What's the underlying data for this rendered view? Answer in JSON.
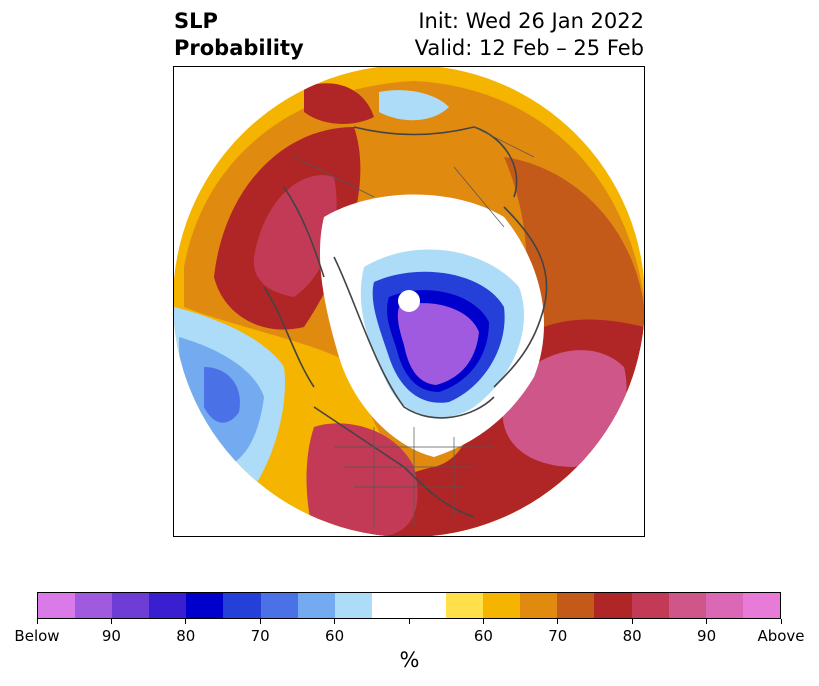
{
  "title": {
    "left_line1": "SLP",
    "left_line2": "Probability",
    "right_line1": "Init: Wed 26 Jan 2022",
    "right_line2": "Valid: 12 Feb – 25 Feb"
  },
  "colorbar": {
    "colors": [
      "#d97ae8",
      "#a05ae0",
      "#6e3dd6",
      "#3a1fd0",
      "#0000cc",
      "#2540d8",
      "#4a72e6",
      "#74aaf0",
      "#acdcf8",
      "#ffffff",
      "#ffffff",
      "#ffe04a",
      "#f4b400",
      "#e08a10",
      "#c45a1a",
      "#b02525",
      "#c23a55",
      "#cf5688",
      "#da68b4",
      "#e87ad8"
    ],
    "tick_labels": [
      "Below",
      "90",
      "80",
      "70",
      "60",
      "",
      "60",
      "70",
      "80",
      "90",
      "Above"
    ],
    "unit": "%"
  },
  "palette": {
    "below_strong": "#a05ae0",
    "below_mid": "#2540d8",
    "below_light": "#74aaf0",
    "neutral": "#ffffff",
    "above_light": "#f4b400",
    "above_mid": "#b02525",
    "above_strong": "#cf5688"
  }
}
